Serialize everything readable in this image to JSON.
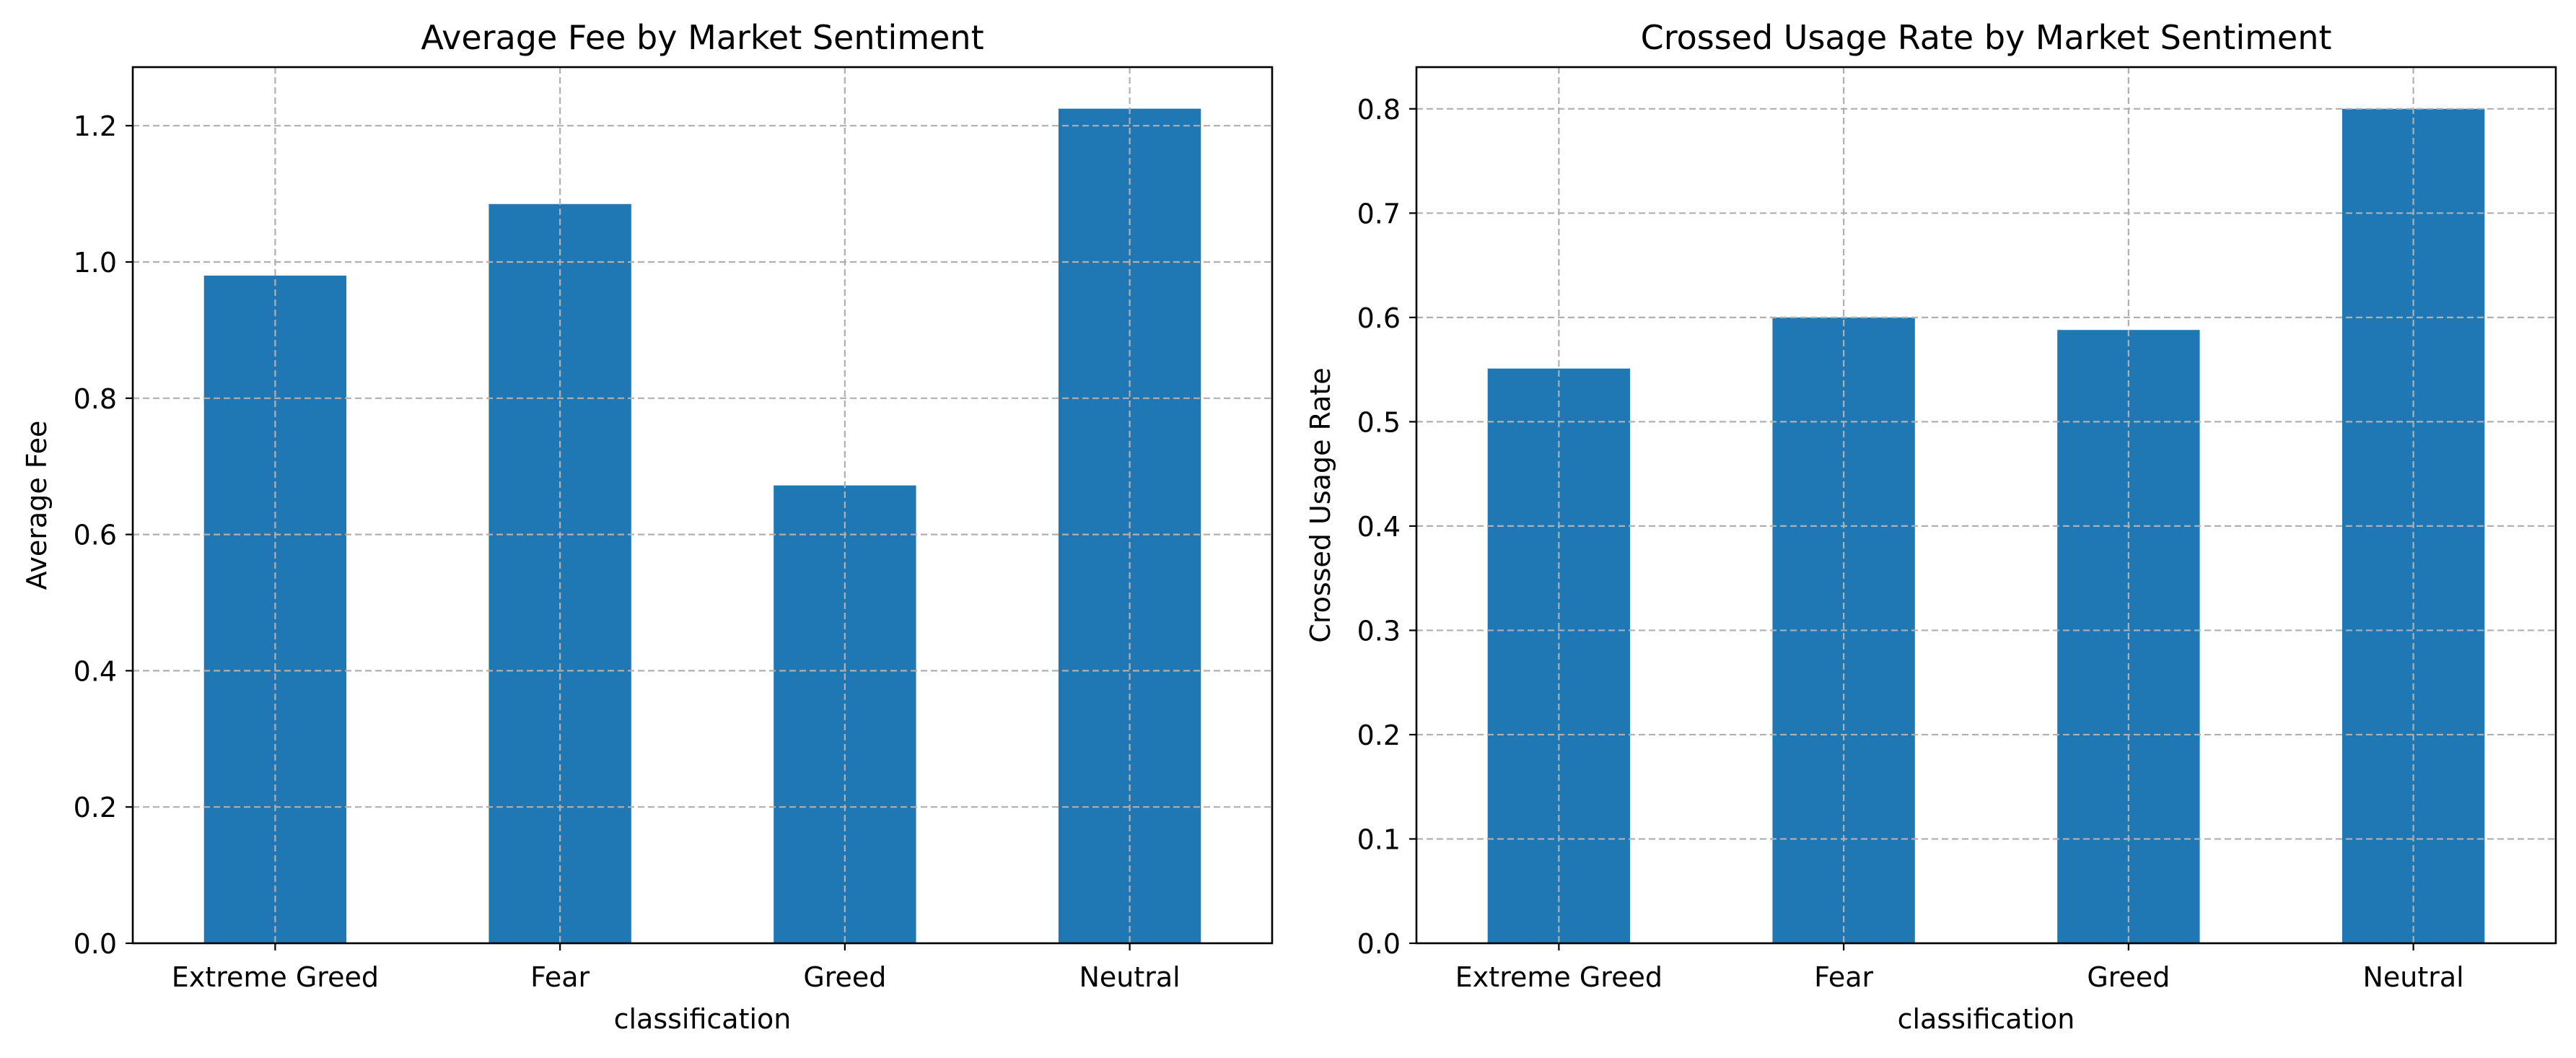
{
  "colors": {
    "bar": "#1f77b4",
    "grid": "#b0b0b0",
    "axis": "#000000",
    "background": "#ffffff"
  },
  "chart_data": [
    {
      "type": "bar",
      "title": "Average Fee by Market Sentiment",
      "xlabel": "classification",
      "ylabel": "Average Fee",
      "categories": [
        "Extreme Greed",
        "Fear",
        "Greed",
        "Neutral"
      ],
      "values": [
        0.98,
        1.085,
        0.672,
        1.225
      ],
      "ylim": [
        0,
        1.286
      ],
      "yticks": [
        0.0,
        0.2,
        0.4,
        0.6,
        0.8,
        1.0,
        1.2
      ],
      "ytick_labels": [
        "0.0",
        "0.2",
        "0.4",
        "0.6",
        "0.8",
        "1.0",
        "1.2"
      ],
      "grid": true,
      "grid_style": "dashed"
    },
    {
      "type": "bar",
      "title": "Crossed Usage Rate by Market Sentiment",
      "xlabel": "classification",
      "ylabel": "Crossed Usage Rate",
      "categories": [
        "Extreme Greed",
        "Fear",
        "Greed",
        "Neutral"
      ],
      "values": [
        0.551,
        0.6,
        0.588,
        0.8
      ],
      "ylim": [
        0,
        0.84
      ],
      "yticks": [
        0.0,
        0.1,
        0.2,
        0.3,
        0.4,
        0.5,
        0.6,
        0.7,
        0.8
      ],
      "ytick_labels": [
        "0.0",
        "0.1",
        "0.2",
        "0.3",
        "0.4",
        "0.5",
        "0.6",
        "0.7",
        "0.8"
      ],
      "grid": true,
      "grid_style": "dashed"
    }
  ]
}
